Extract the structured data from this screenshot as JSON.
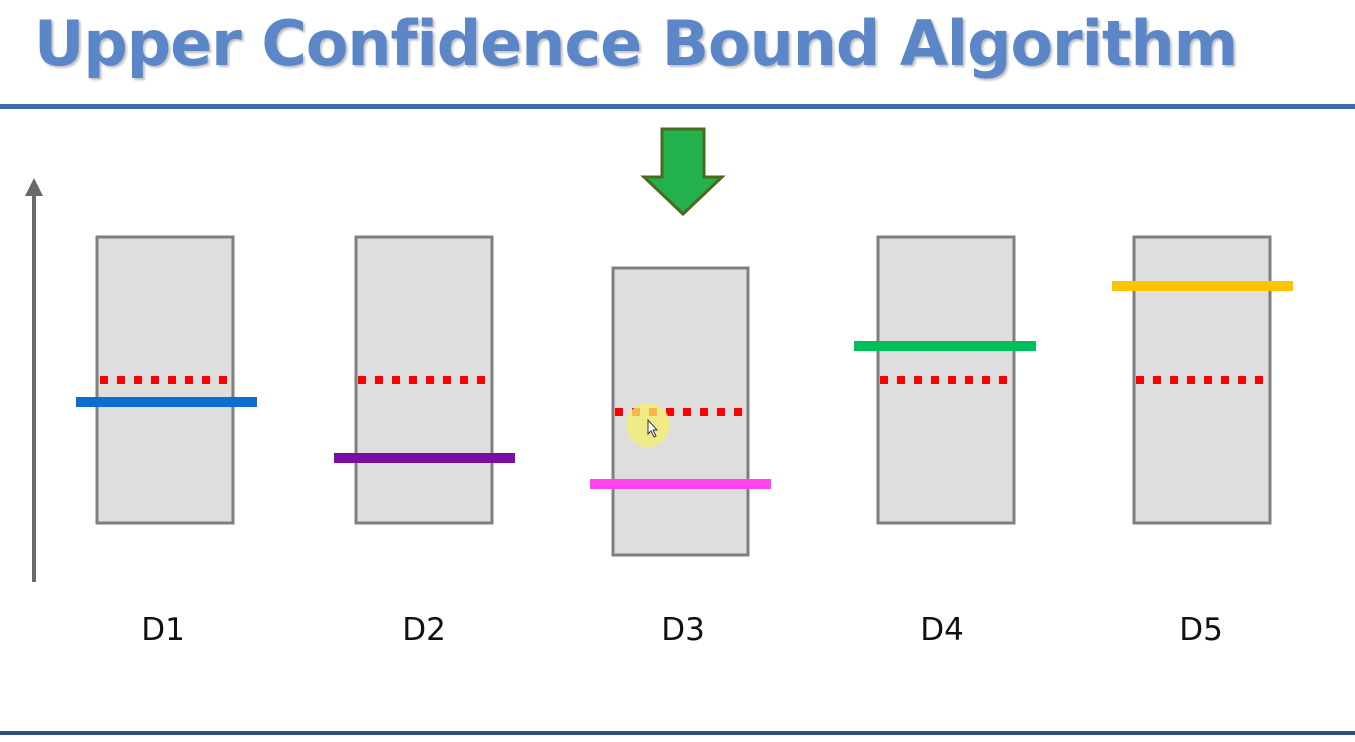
{
  "title": "Upper Confidence Bound Algorithm",
  "machines": [
    {
      "label": "D1",
      "observed_color": "#0a6fd0"
    },
    {
      "label": "D2",
      "observed_color": "#7a0fa6"
    },
    {
      "label": "D3",
      "observed_color": "#ff44f0"
    },
    {
      "label": "D4",
      "observed_color": "#00bf5a"
    },
    {
      "label": "D5",
      "observed_color": "#ffc400"
    }
  ],
  "selected_machine": "D3",
  "colors": {
    "title": "#5b86c8",
    "rule": "#3d6bb3",
    "box_fill": "#dedede",
    "box_stroke": "#7f7f7f",
    "expected_line": "#ff0000",
    "arrow_fill": "#22b14c",
    "arrow_stroke": "#4a6b1f"
  }
}
